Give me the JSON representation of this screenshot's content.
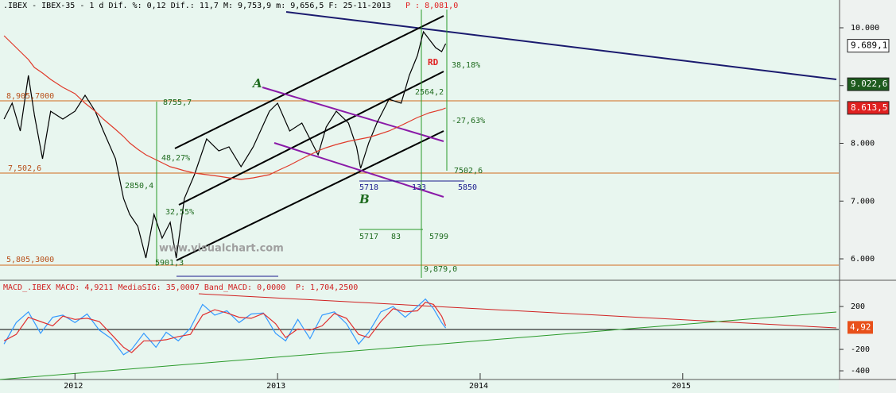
{
  "chart_data": [
    {
      "type": "line",
      "title": ".IBEX - IBEX-35 -  1 d Dif. %: 0,12 Dif.: 11,7 M: 9,753,9 m: 9,656,5 F: 25-11-2013",
      "price_note": "P : 8,081,0",
      "x": [
        2011.65,
        2011.69,
        2011.73,
        2011.77,
        2011.8,
        2011.84,
        2011.88,
        2011.94,
        2012.0,
        2012.05,
        2012.1,
        2012.14,
        2012.2,
        2012.24,
        2012.27,
        2012.31,
        2012.35,
        2012.39,
        2012.43,
        2012.47,
        2012.5,
        2012.54,
        2012.59,
        2012.65,
        2012.71,
        2012.76,
        2012.82,
        2012.88,
        2012.96,
        2013.0,
        2013.06,
        2013.12,
        2013.16,
        2013.2,
        2013.24,
        2013.29,
        2013.35,
        2013.39,
        2013.41,
        2013.45,
        2013.49,
        2013.55,
        2013.61,
        2013.65,
        2013.69,
        2013.72,
        2013.75,
        2013.78,
        2013.81,
        2013.83
      ],
      "series": [
        {
          "color": "#000000",
          "values": [
            8420,
            8695,
            8213,
            9175,
            8488,
            7732,
            8556,
            8420,
            8556,
            8832,
            8556,
            8213,
            7732,
            7045,
            6770,
            6564,
            6014,
            6770,
            6358,
            6632,
            6014,
            7045,
            7457,
            8076,
            7869,
            7938,
            7595,
            7938,
            8556,
            8694,
            8213,
            8351,
            8076,
            7801,
            8282,
            8556,
            8351,
            7938,
            7567,
            8007,
            8351,
            8763,
            8694,
            9175,
            9519,
            9931,
            9794,
            9656,
            9588,
            9725
          ]
        },
        {
          "color": "#e03a2a",
          "values": [
            9863,
            9725,
            9588,
            9450,
            9313,
            9216,
            9107,
            8969,
            8859,
            8694,
            8556,
            8419,
            8240,
            8117,
            8007,
            7897,
            7801,
            7732,
            7663,
            7595,
            7567,
            7526,
            7485,
            7457,
            7430,
            7402,
            7375,
            7402,
            7457,
            7526,
            7622,
            7732,
            7801,
            7869,
            7924,
            7979,
            8034,
            8062,
            8076,
            8103,
            8144,
            8213,
            8309,
            8378,
            8447,
            8488,
            8529,
            8556,
            8584,
            8612
          ]
        }
      ],
      "xlim": [
        2011.63,
        2015.77
      ],
      "ylim": [
        5643,
        10481
      ],
      "yticks": [
        {
          "value": 10000,
          "label": "10.000"
        },
        {
          "value": 9000,
          "label": "9.000"
        },
        {
          "value": 8000,
          "label": "8.000"
        },
        {
          "value": 7000,
          "label": "7.000"
        },
        {
          "value": 6000,
          "label": "6.000"
        }
      ],
      "price_labels": [
        {
          "value": 9689.1,
          "label": "9.689,1",
          "color": "#ffffff"
        },
        {
          "value": 9022.6,
          "label": "9.022,6",
          "color": "#1e5b1e"
        },
        {
          "value": 8613.5,
          "label": "8.613,5",
          "color": "#e02020"
        }
      ],
      "annotations": [
        "A",
        "B",
        "RD",
        "38,18%",
        "-27,63%",
        "48,27%",
        "2850,4",
        "8755,7",
        "7502,6",
        "5718",
        "133",
        "5850",
        "5717",
        "83",
        "5799",
        "9,879,0",
        "2564,2",
        "8,905,7000",
        "7,502,6",
        "5,805,3000",
        "www.visualchart.com",
        "32,55%",
        "5901,3"
      ]
    },
    {
      "type": "line",
      "title": "MACD_.IBEX MACD: 4,9211 MediaSIG: 35,0007 Band_MACD: 0,0000",
      "price_note": "P: 1,704,2500",
      "x": [
        2011.65,
        2011.71,
        2011.77,
        2011.83,
        2011.89,
        2011.94,
        2012.0,
        2012.06,
        2012.12,
        2012.18,
        2012.24,
        2012.28,
        2012.34,
        2012.4,
        2012.45,
        2012.51,
        2012.57,
        2012.63,
        2012.69,
        2012.75,
        2012.81,
        2012.87,
        2012.93,
        2012.99,
        2013.04,
        2013.1,
        2013.16,
        2013.22,
        2013.28,
        2013.34,
        2013.4,
        2013.45,
        2013.51,
        2013.57,
        2013.63,
        2013.69,
        2013.73,
        2013.77,
        2013.81,
        2013.83
      ],
      "series": [
        {
          "color": "#3399ff",
          "values": [
            -150,
            50,
            150,
            -50,
            100,
            120,
            50,
            130,
            -20,
            -100,
            -250,
            -200,
            -50,
            -180,
            -40,
            -120,
            0,
            220,
            120,
            160,
            50,
            130,
            140,
            -50,
            -120,
            80,
            -100,
            120,
            150,
            40,
            -150,
            -40,
            150,
            200,
            100,
            200,
            270,
            180,
            50,
            0
          ]
        },
        {
          "color": "#e03030",
          "values": [
            -120,
            -60,
            100,
            60,
            20,
            110,
            80,
            90,
            60,
            -60,
            -180,
            -230,
            -120,
            -120,
            -110,
            -80,
            -60,
            120,
            170,
            140,
            100,
            90,
            135,
            40,
            -90,
            -10,
            -20,
            20,
            135,
            90,
            -60,
            -90,
            60,
            180,
            150,
            160,
            240,
            220,
            110,
            20
          ]
        }
      ],
      "xlim": [
        2011.63,
        2015.77
      ],
      "xticks": [
        2012,
        2013,
        2014,
        2015
      ],
      "ylim": [
        -481,
        430
      ],
      "yticks": [
        200,
        -200,
        -400
      ],
      "last_value": {
        "value": 4.92,
        "label": "4,92",
        "color": "#e8501a"
      }
    }
  ]
}
